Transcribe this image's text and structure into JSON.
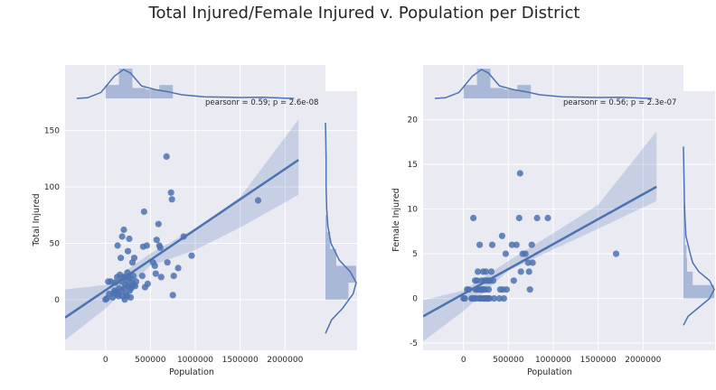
{
  "title": "Total Injured/Female Injured v. Population per District",
  "colors": {
    "accent": "#4c72b0",
    "panel_bg": "#eaeaf2",
    "grid": "#ffffff"
  },
  "chart_data": [
    {
      "type": "scatter",
      "subtype": "jointplot-regression",
      "xlabel": "Population",
      "ylabel": "Total Injured",
      "xlim": [
        -450000,
        2450000
      ],
      "ylim": [
        -45,
        185
      ],
      "xticks": [
        0,
        500000,
        1000000,
        1500000,
        2000000
      ],
      "yticks": [
        0,
        50,
        100,
        150
      ],
      "annotation": "pearsonr = 0.59; p = 2.6e-08",
      "regression": {
        "x": [
          -450000,
          2150000
        ],
        "y": [
          -16,
          124
        ]
      },
      "ci_band": {
        "x": [
          -450000,
          0,
          500000,
          1000000,
          1500000,
          2150000
        ],
        "upper": [
          9,
          13,
          41,
          63,
          91,
          160
        ],
        "lower": [
          -36,
          -8,
          30,
          44,
          64,
          93
        ]
      },
      "marginal_x": {
        "bins": [
          0,
          150000,
          300000,
          450000,
          600000,
          750000
        ],
        "density": [
          0.45,
          1.0,
          0.35,
          0.3,
          0.45
        ],
        "kde": [
          [
            -320000,
            0.0
          ],
          [
            -200000,
            0.02
          ],
          [
            -50000,
            0.2
          ],
          [
            100000,
            0.75
          ],
          [
            200000,
            0.97
          ],
          [
            280000,
            0.85
          ],
          [
            400000,
            0.42
          ],
          [
            550000,
            0.3
          ],
          [
            700000,
            0.22
          ],
          [
            850000,
            0.12
          ],
          [
            1100000,
            0.05
          ],
          [
            1500000,
            0.03
          ],
          [
            1750000,
            0.04
          ],
          [
            2000000,
            0.01
          ],
          [
            2100000,
            0.0
          ]
        ]
      },
      "marginal_y": {
        "bins": [
          0,
          15,
          30,
          45,
          60,
          75
        ],
        "density": [
          0.75,
          1.0,
          0.35,
          0.15,
          0.05
        ],
        "kde": [
          [
            -30,
            0.0
          ],
          [
            -18,
            0.2
          ],
          [
            -8,
            0.55
          ],
          [
            5,
            0.9
          ],
          [
            15,
            1.0
          ],
          [
            25,
            0.8
          ],
          [
            35,
            0.45
          ],
          [
            50,
            0.18
          ],
          [
            65,
            0.08
          ],
          [
            80,
            0.04
          ],
          [
            100,
            0.02
          ],
          [
            125,
            0.02
          ],
          [
            145,
            0.01
          ],
          [
            157,
            0.0
          ]
        ]
      },
      "points": [
        [
          0,
          0
        ],
        [
          15000,
          1
        ],
        [
          40000,
          5
        ],
        [
          30000,
          16
        ],
        [
          60000,
          16
        ],
        [
          80000,
          2
        ],
        [
          90000,
          6
        ],
        [
          100000,
          8
        ],
        [
          110000,
          15
        ],
        [
          115000,
          5
        ],
        [
          120000,
          7
        ],
        [
          130000,
          20
        ],
        [
          135000,
          48
        ],
        [
          140000,
          5
        ],
        [
          145000,
          3
        ],
        [
          150000,
          10
        ],
        [
          160000,
          22
        ],
        [
          170000,
          37
        ],
        [
          175000,
          16
        ],
        [
          180000,
          8
        ],
        [
          185000,
          56
        ],
        [
          190000,
          3
        ],
        [
          200000,
          20
        ],
        [
          205000,
          62
        ],
        [
          210000,
          10
        ],
        [
          215000,
          0
        ],
        [
          220000,
          13
        ],
        [
          225000,
          20
        ],
        [
          230000,
          5
        ],
        [
          235000,
          17
        ],
        [
          240000,
          3
        ],
        [
          245000,
          24
        ],
        [
          250000,
          43
        ],
        [
          255000,
          12
        ],
        [
          260000,
          20
        ],
        [
          265000,
          54
        ],
        [
          270000,
          8
        ],
        [
          275000,
          19
        ],
        [
          280000,
          2
        ],
        [
          285000,
          10
        ],
        [
          290000,
          12
        ],
        [
          295000,
          15
        ],
        [
          300000,
          33
        ],
        [
          310000,
          21
        ],
        [
          315000,
          13
        ],
        [
          320000,
          37
        ],
        [
          330000,
          12
        ],
        [
          340000,
          16
        ],
        [
          410000,
          21
        ],
        [
          420000,
          47
        ],
        [
          430000,
          78
        ],
        [
          440000,
          11
        ],
        [
          460000,
          48
        ],
        [
          470000,
          14
        ],
        [
          530000,
          33
        ],
        [
          550000,
          30
        ],
        [
          560000,
          23
        ],
        [
          570000,
          53
        ],
        [
          590000,
          67
        ],
        [
          600000,
          48
        ],
        [
          610000,
          46
        ],
        [
          620000,
          20
        ],
        [
          680000,
          127
        ],
        [
          690000,
          33
        ],
        [
          730000,
          95
        ],
        [
          740000,
          89
        ],
        [
          750000,
          4
        ],
        [
          760000,
          21
        ],
        [
          810000,
          28
        ],
        [
          870000,
          56
        ],
        [
          960000,
          39
        ],
        [
          1700000,
          88
        ]
      ]
    },
    {
      "type": "scatter",
      "subtype": "jointplot-regression",
      "xlabel": "Population",
      "ylabel": "Female Injured",
      "xlim": [
        -450000,
        2450000
      ],
      "ylim": [
        -5.8,
        23.2
      ],
      "xticks": [
        0,
        500000,
        1000000,
        1500000,
        2000000
      ],
      "yticks": [
        -5,
        0,
        5,
        10,
        15,
        20
      ],
      "annotation": "pearsonr = 0.56; p = 2.3e-07",
      "regression": {
        "x": [
          -450000,
          2150000
        ],
        "y": [
          -2,
          12.5
        ]
      },
      "ci_band": {
        "x": [
          -450000,
          0,
          500000,
          1000000,
          1500000,
          2150000
        ],
        "upper": [
          -0.2,
          0.9,
          4.2,
          7.3,
          10.5,
          18.7
        ],
        "lower": [
          -4.8,
          -1.4,
          3.1,
          5.5,
          7.8,
          10.9
        ]
      },
      "marginal_x": {
        "bins": [
          0,
          150000,
          300000,
          450000,
          600000,
          750000
        ],
        "density": [
          0.45,
          1.0,
          0.35,
          0.3,
          0.45
        ],
        "kde": [
          [
            -320000,
            0.0
          ],
          [
            -200000,
            0.02
          ],
          [
            -50000,
            0.2
          ],
          [
            100000,
            0.75
          ],
          [
            200000,
            0.97
          ],
          [
            280000,
            0.85
          ],
          [
            400000,
            0.42
          ],
          [
            550000,
            0.3
          ],
          [
            700000,
            0.22
          ],
          [
            850000,
            0.12
          ],
          [
            1100000,
            0.05
          ],
          [
            1500000,
            0.03
          ],
          [
            1750000,
            0.04
          ],
          [
            2000000,
            0.01
          ],
          [
            2100000,
            0.0
          ]
        ]
      },
      "marginal_y": {
        "bins": [
          0,
          1.5,
          3,
          4.5,
          6,
          7.5,
          9,
          10.5
        ],
        "density": [
          1.0,
          0.3,
          0.12,
          0.1,
          0.05,
          0.04,
          0.03
        ],
        "kde": [
          [
            -3,
            0.0
          ],
          [
            -2,
            0.15
          ],
          [
            -1,
            0.5
          ],
          [
            0,
            0.85
          ],
          [
            1,
            1.0
          ],
          [
            2,
            0.85
          ],
          [
            3,
            0.5
          ],
          [
            4,
            0.3
          ],
          [
            5,
            0.22
          ],
          [
            6,
            0.15
          ],
          [
            7,
            0.08
          ],
          [
            9,
            0.05
          ],
          [
            11,
            0.03
          ],
          [
            13,
            0.02
          ],
          [
            17,
            0.0
          ]
        ]
      },
      "points": [
        [
          0,
          0
        ],
        [
          15000,
          0
        ],
        [
          40000,
          1
        ],
        [
          60000,
          1
        ],
        [
          90000,
          0
        ],
        [
          100000,
          0
        ],
        [
          110000,
          9
        ],
        [
          115000,
          0
        ],
        [
          120000,
          0
        ],
        [
          130000,
          2
        ],
        [
          135000,
          1
        ],
        [
          140000,
          0
        ],
        [
          145000,
          1
        ],
        [
          150000,
          2
        ],
        [
          160000,
          3
        ],
        [
          170000,
          1
        ],
        [
          175000,
          0
        ],
        [
          180000,
          6
        ],
        [
          185000,
          1
        ],
        [
          190000,
          0
        ],
        [
          200000,
          2
        ],
        [
          205000,
          1
        ],
        [
          210000,
          1
        ],
        [
          215000,
          0
        ],
        [
          220000,
          3
        ],
        [
          225000,
          1
        ],
        [
          230000,
          0
        ],
        [
          235000,
          2
        ],
        [
          240000,
          0
        ],
        [
          245000,
          1
        ],
        [
          250000,
          3
        ],
        [
          255000,
          2
        ],
        [
          260000,
          0
        ],
        [
          265000,
          0
        ],
        [
          270000,
          2
        ],
        [
          275000,
          0
        ],
        [
          280000,
          1
        ],
        [
          285000,
          2
        ],
        [
          290000,
          0
        ],
        [
          300000,
          2
        ],
        [
          310000,
          3
        ],
        [
          320000,
          6
        ],
        [
          330000,
          2
        ],
        [
          340000,
          0
        ],
        [
          400000,
          0
        ],
        [
          410000,
          1
        ],
        [
          430000,
          7
        ],
        [
          440000,
          1
        ],
        [
          450000,
          0
        ],
        [
          470000,
          5
        ],
        [
          480000,
          1
        ],
        [
          540000,
          6
        ],
        [
          560000,
          2
        ],
        [
          590000,
          6
        ],
        [
          620000,
          9
        ],
        [
          630000,
          14
        ],
        [
          640000,
          3
        ],
        [
          660000,
          5
        ],
        [
          690000,
          5
        ],
        [
          720000,
          4
        ],
        [
          730000,
          3
        ],
        [
          740000,
          1
        ],
        [
          760000,
          6
        ],
        [
          770000,
          4
        ],
        [
          820000,
          9
        ],
        [
          940000,
          9
        ],
        [
          1700000,
          5
        ]
      ]
    }
  ]
}
